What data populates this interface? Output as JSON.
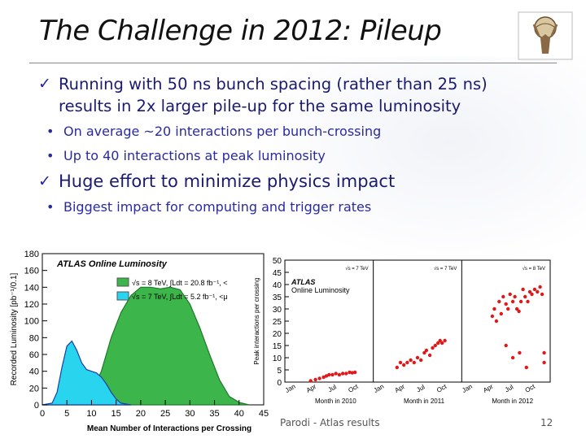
{
  "slide": {
    "title": "The Challenge in 2012: Pileup",
    "bullets": [
      {
        "text_line1": "Running with 50 ns bunch spacing (rather than 25 ns)",
        "text_line2": "results in 2x larger pile-up for the same luminosity"
      },
      {
        "text_line1": "Huge effort to minimize physics impact"
      }
    ],
    "sub_bullets": [
      "On average ~20 interactions per bunch-crossing",
      "Up to 40 interactions at peak luminosity",
      "Biggest impact for computing and trigger rates"
    ],
    "footer_author": "Parodi - Atlas results",
    "page_number": "12",
    "check_glyph": "✓",
    "bullet_glyph": "•"
  },
  "chart_data": [
    {
      "type": "area",
      "title": "ATLAS Online Luminosity",
      "xlabel": "Mean Number of Interactions per Crossing",
      "ylabel": "Recorded Luminosity [pb⁻¹/0.1]",
      "xlim": [
        0,
        45
      ],
      "ylim": [
        0,
        180
      ],
      "xticks": [
        "0",
        "5",
        "10",
        "15",
        "20",
        "25",
        "30",
        "35",
        "40",
        "45"
      ],
      "yticks": [
        "0",
        "20",
        "40",
        "60",
        "80",
        "100",
        "120",
        "140",
        "160",
        "180"
      ],
      "legend": [
        "√s = 8 TeV, ∫Ldt = 20.8 fb⁻¹, <",
        "√s = 7 TeV, ∫Ldt = 5.2 fb⁻¹, <μ"
      ],
      "series": [
        {
          "name": "√s = 8 TeV",
          "color": "#3cb54a",
          "x": [
            0,
            3,
            5,
            8,
            10,
            12,
            14,
            16,
            18,
            20,
            22,
            24,
            26,
            28,
            30,
            32,
            34,
            36,
            38,
            40,
            42
          ],
          "values": [
            0,
            0,
            1,
            5,
            15,
            40,
            80,
            110,
            130,
            140,
            140,
            138,
            140,
            137,
            120,
            92,
            60,
            30,
            10,
            3,
            0
          ]
        },
        {
          "name": "√s = 7 TeV",
          "color": "#29d4ef",
          "x": [
            0,
            2,
            3,
            4,
            5,
            6,
            7,
            8,
            9,
            10,
            11,
            12,
            13,
            14,
            15,
            16,
            17,
            18
          ],
          "values": [
            0,
            2,
            15,
            45,
            70,
            76,
            65,
            50,
            42,
            40,
            38,
            33,
            25,
            15,
            7,
            2,
            1,
            0
          ]
        }
      ]
    },
    {
      "type": "scatter",
      "title": "ATLAS Online Luminosity",
      "ylabel": "Peak interactions per crossing",
      "ylim": [
        0,
        50
      ],
      "yticks": [
        "0",
        "5",
        "10",
        "15",
        "20",
        "25",
        "30",
        "35",
        "40",
        "45",
        "50"
      ],
      "panels": [
        {
          "energy": "√s = 7 TeV",
          "xlabel": "Month in 2010",
          "months": [
            "Jan",
            "Apr",
            "Jul",
            "Oct"
          ]
        },
        {
          "energy": "√s = 7 TeV",
          "xlabel": "Month in 2011",
          "months": [
            "Jan",
            "Apr",
            "Jul",
            "Oct"
          ]
        },
        {
          "energy": "√s = 8 TeV",
          "xlabel": "Month in 2012",
          "months": [
            "Jan",
            "Apr",
            "Jul",
            "Oct"
          ]
        }
      ],
      "marker_color": "#e01818",
      "points_by_panel": [
        [
          [
            3.3,
            0.5
          ],
          [
            4.0,
            1
          ],
          [
            4.6,
            1.5
          ],
          [
            5.2,
            2
          ],
          [
            5.6,
            2.5
          ],
          [
            6.0,
            3
          ],
          [
            6.5,
            3
          ],
          [
            7.0,
            3.5
          ],
          [
            7.5,
            3
          ],
          [
            8.0,
            3.5
          ],
          [
            8.5,
            3.5
          ],
          [
            9.0,
            4
          ],
          [
            9.4,
            3.8
          ],
          [
            9.8,
            4
          ]
        ],
        [
          [
            3.0,
            6
          ],
          [
            3.5,
            8
          ],
          [
            4.0,
            7
          ],
          [
            4.5,
            8
          ],
          [
            5.0,
            9
          ],
          [
            5.5,
            8
          ],
          [
            6.0,
            10
          ],
          [
            6.5,
            9
          ],
          [
            7.0,
            12
          ],
          [
            7.3,
            13
          ],
          [
            7.8,
            11
          ],
          [
            8.2,
            14
          ],
          [
            8.6,
            15
          ],
          [
            9.0,
            16
          ],
          [
            9.3,
            17
          ],
          [
            9.6,
            16
          ],
          [
            10.0,
            17
          ]
        ],
        [
          [
            4.0,
            27
          ],
          [
            4.3,
            30
          ],
          [
            4.6,
            25
          ],
          [
            5.0,
            33
          ],
          [
            5.3,
            28
          ],
          [
            5.6,
            35
          ],
          [
            6.0,
            32
          ],
          [
            6.3,
            30
          ],
          [
            6.6,
            36
          ],
          [
            7.0,
            33
          ],
          [
            7.3,
            35
          ],
          [
            7.6,
            30
          ],
          [
            7.9,
            29
          ],
          [
            8.2,
            33
          ],
          [
            8.5,
            38
          ],
          [
            8.8,
            35
          ],
          [
            9.2,
            33
          ],
          [
            9.5,
            37
          ],
          [
            9.8,
            36
          ],
          [
            10.2,
            38
          ],
          [
            10.6,
            37
          ],
          [
            11.0,
            39
          ],
          [
            11.3,
            36
          ],
          [
            11.6,
            8
          ],
          [
            7.0,
            10
          ],
          [
            8.0,
            12
          ],
          [
            6.0,
            15
          ],
          [
            9.0,
            6
          ],
          [
            11.6,
            12
          ]
        ]
      ]
    }
  ]
}
